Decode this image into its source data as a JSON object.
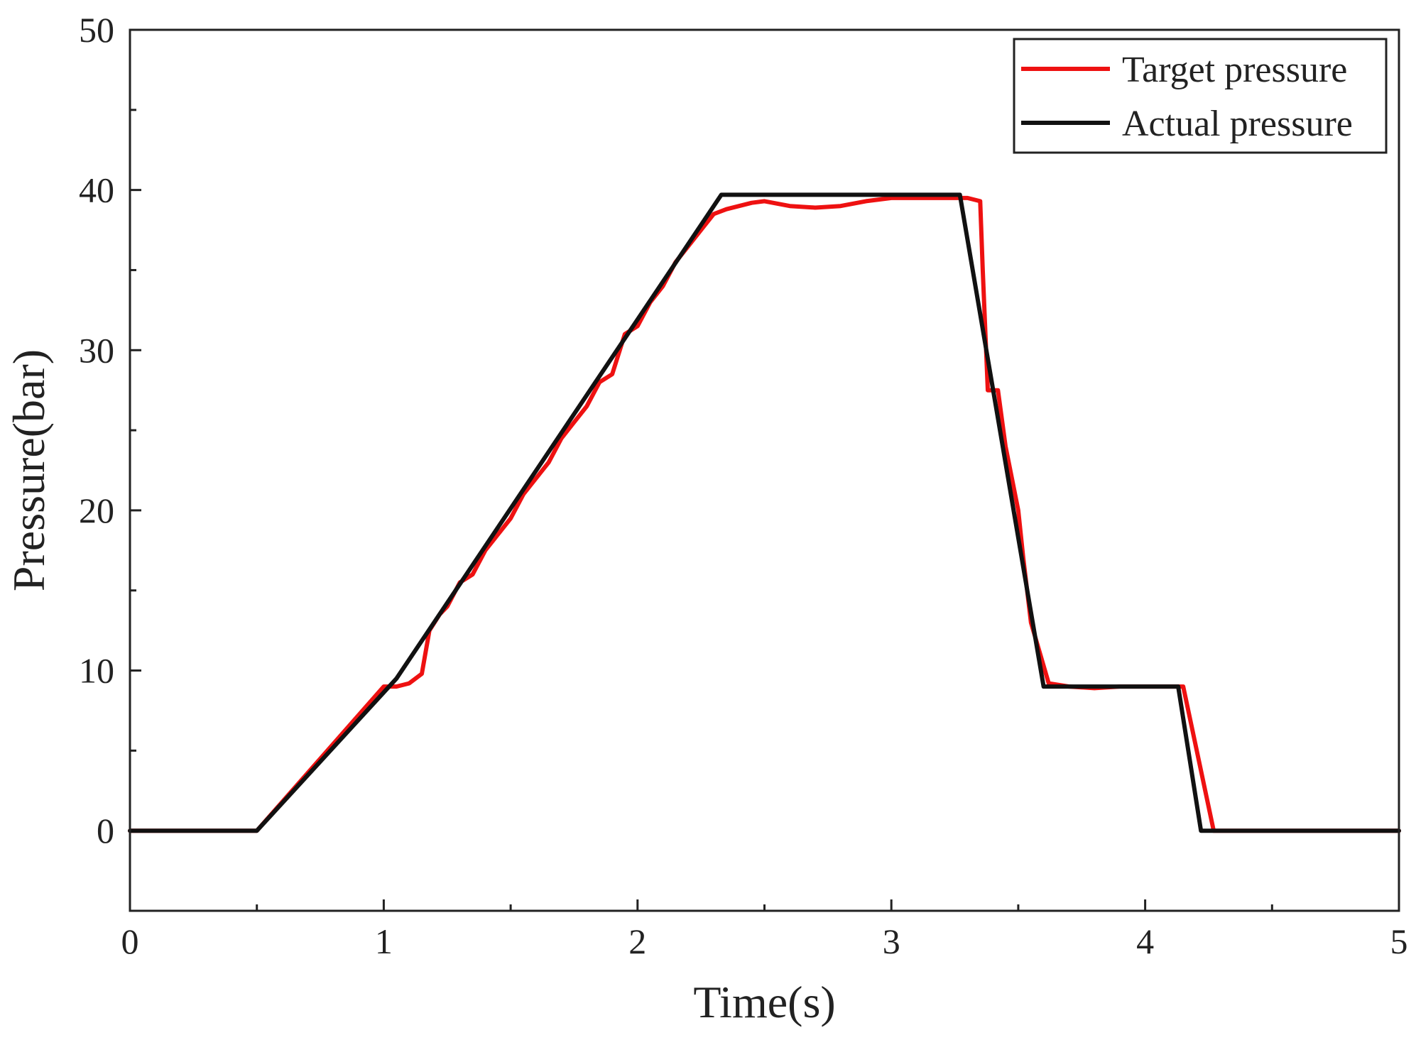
{
  "chart_data": {
    "type": "line",
    "title": "",
    "xlabel": "Time(s)",
    "ylabel": "Pressure(bar)",
    "xlim": [
      0,
      5
    ],
    "ylim": [
      -5,
      50
    ],
    "xticks": [
      0,
      1,
      2,
      3,
      4,
      5
    ],
    "yticks": [
      0,
      10,
      20,
      30,
      40,
      50
    ],
    "grid": false,
    "legend_position": "top-right",
    "series": [
      {
        "name": "Target pressure",
        "color": "#ee1111",
        "x": [
          0,
          0.5,
          1.0,
          1.05,
          1.1,
          1.15,
          1.18,
          1.22,
          1.25,
          1.3,
          1.35,
          1.4,
          1.45,
          1.5,
          1.55,
          1.6,
          1.65,
          1.7,
          1.75,
          1.8,
          1.85,
          1.9,
          1.95,
          2.0,
          2.05,
          2.1,
          2.15,
          2.2,
          2.25,
          2.3,
          2.35,
          2.45,
          2.5,
          2.6,
          2.7,
          2.8,
          2.9,
          3.0,
          3.1,
          3.2,
          3.3,
          3.35,
          3.36,
          3.38,
          3.42,
          3.45,
          3.5,
          3.52,
          3.55,
          3.62,
          3.7,
          3.8,
          3.9,
          4.0,
          4.1,
          4.15,
          4.27,
          4.3,
          4.5,
          5.0
        ],
        "y": [
          0,
          0,
          9.0,
          9.0,
          9.2,
          9.8,
          12.5,
          13.5,
          14.0,
          15.5,
          16.0,
          17.5,
          18.5,
          19.5,
          21.0,
          22.0,
          23.0,
          24.5,
          25.5,
          26.5,
          28.0,
          28.5,
          31.0,
          31.5,
          33.0,
          34.0,
          35.5,
          36.5,
          37.5,
          38.5,
          38.8,
          39.2,
          39.3,
          39.0,
          38.9,
          39.0,
          39.3,
          39.5,
          39.5,
          39.5,
          39.5,
          39.3,
          35.0,
          27.5,
          27.5,
          24.0,
          20.0,
          17.0,
          13.0,
          9.2,
          9.0,
          8.9,
          9.0,
          9.0,
          9.0,
          9.0,
          0,
          0,
          0,
          0
        ]
      },
      {
        "name": "Actual pressure",
        "color": "#111111",
        "x": [
          0,
          0.5,
          1.05,
          2.33,
          3.27,
          3.6,
          4.13,
          4.22,
          5.0
        ],
        "y": [
          0,
          0,
          9.5,
          39.7,
          39.7,
          9.0,
          9.0,
          0,
          0
        ]
      }
    ]
  }
}
